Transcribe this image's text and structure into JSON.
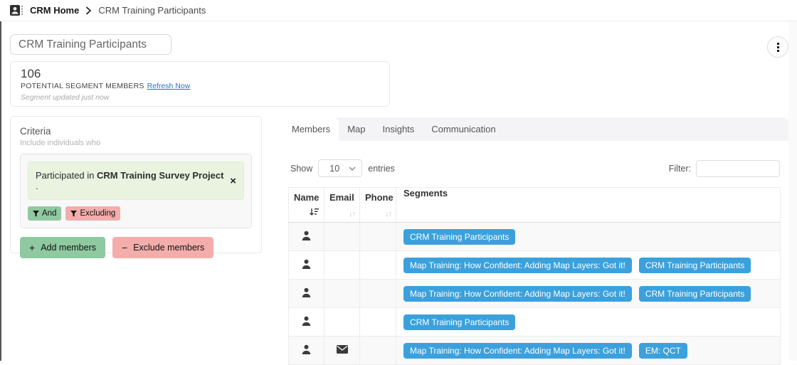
{
  "breadcrumb": {
    "home": "CRM Home",
    "current": "CRM Training Participants"
  },
  "header": {
    "title": "CRM Training Participants"
  },
  "stats": {
    "count": "106",
    "label": "POTENTIAL SEGMENT MEMBERS",
    "refresh_link": "Refresh Now",
    "updated": "Segment updated just now"
  },
  "criteria": {
    "heading": "Criteria",
    "subheading": "Include individuals who",
    "rule": {
      "prefix": "Participated in ",
      "bold": "CRM Training Survey Project",
      "suffix": " ."
    },
    "and_label": "And",
    "excluding_label": "Excluding",
    "add_members_label": "Add members",
    "exclude_members_label": "Exclude members"
  },
  "tabs": [
    {
      "label": "Members",
      "active": true
    },
    {
      "label": "Map",
      "active": false
    },
    {
      "label": "Insights",
      "active": false
    },
    {
      "label": "Communication",
      "active": false
    }
  ],
  "table_controls": {
    "show_label": "Show",
    "page_size": "10",
    "entries_label": "entries",
    "filter_label": "Filter:",
    "filter_value": ""
  },
  "table": {
    "columns": [
      {
        "label": "Name",
        "sort": "descending"
      },
      {
        "label": "Email",
        "sort": "unsorted"
      },
      {
        "label": "Phone",
        "sort": "unsorted"
      },
      {
        "label": "Segments",
        "sort": "none"
      }
    ],
    "rows": [
      {
        "has_email": false,
        "segments": [
          "CRM Training Participants"
        ]
      },
      {
        "has_email": false,
        "segments": [
          "Map Training: How Confident: Adding Map Layers: Got it!",
          "CRM Training Participants"
        ]
      },
      {
        "has_email": false,
        "segments": [
          "Map Training: How Confident: Adding Map Layers: Got it!",
          "CRM Training Participants"
        ]
      },
      {
        "has_email": false,
        "segments": [
          "CRM Training Participants"
        ]
      },
      {
        "has_email": true,
        "segments": [
          "Map Training: How Confident: Adding Map Layers: Got it!",
          "EM: QCT"
        ]
      }
    ]
  },
  "icons": {
    "app_icon": "contact-card",
    "breadcrumb_separator": "chevron-right",
    "more_options": "vertical-dots",
    "rule_remove": "x-close",
    "chip_icon": "filter-funnel",
    "add_sign": "+",
    "minus_sign": "−",
    "name_sort": "sort-amount-descending",
    "unsorted_glyph": "↓↑",
    "row_icon": "person-silhouette",
    "email_icon": "envelope",
    "select_icon": "chevron-down"
  },
  "colors": {
    "badge_blue": "#3ba1dc",
    "green": "#8fc9a0",
    "pink": "#f3adab",
    "rule_green_bg": "#e9f3e0",
    "link_blue": "#2e6fc5",
    "tabstrip_bg": "#f4f4f6",
    "stripe_row": "#f9f9f9"
  }
}
